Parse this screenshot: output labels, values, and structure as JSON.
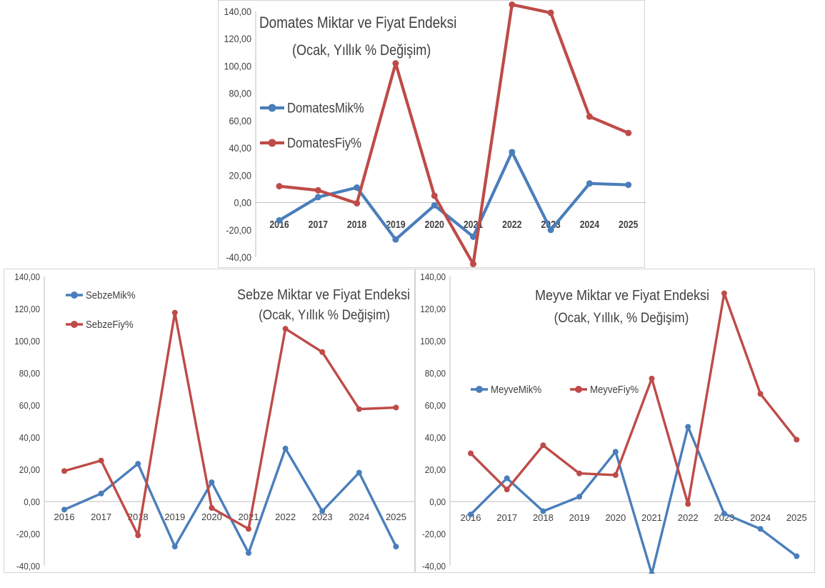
{
  "colors": {
    "mik": "#4a7ebb",
    "fiy": "#be4b48",
    "axis": "#bfbfbf"
  },
  "chart_data": [
    {
      "id": "domates",
      "type": "line",
      "title": "Domates Miktar ve Fiyat Endeksi",
      "subtitle": "(Ocak, Yıllık % Değişim)",
      "categories": [
        "2016",
        "2017",
        "2018",
        "2019",
        "2020",
        "2021",
        "2022",
        "2023",
        "2024",
        "2025"
      ],
      "ylim": [
        -40,
        140
      ],
      "yticks": [
        "-40,00",
        "-20,00",
        "0,00",
        "20,00",
        "40,00",
        "60,00",
        "80,00",
        "100,00",
        "120,00",
        "140,00"
      ],
      "legend_position": "left",
      "series": [
        {
          "name": "DomatesMik%",
          "color": "#4a7ebb",
          "values": [
            -13,
            4,
            11,
            -27,
            -2,
            -25,
            37,
            -20,
            14,
            13
          ]
        },
        {
          "name": "DomatesFiy%",
          "color": "#be4b48",
          "values": [
            12,
            9,
            -0.5,
            102,
            5,
            -45,
            145,
            139,
            63,
            51
          ]
        }
      ]
    },
    {
      "id": "sebze",
      "type": "line",
      "title": "Sebze Miktar ve Fiyat Endeksi",
      "subtitle": "(Ocak, Yıllık % Değişim)",
      "categories": [
        "2016",
        "2017",
        "2018",
        "2019",
        "2020",
        "2021",
        "2022",
        "2023",
        "2024",
        "2025"
      ],
      "ylim": [
        -40,
        140
      ],
      "yticks": [
        "-40,00",
        "-20,00",
        "0,00",
        "20,00",
        "40,00",
        "60,00",
        "80,00",
        "100,00",
        "120,00",
        "140,00"
      ],
      "legend_position": "top-left",
      "series": [
        {
          "name": "SebzeMik%",
          "color": "#4a7ebb",
          "values": [
            -5,
            5,
            23.5,
            -28,
            12,
            -32,
            33,
            -6,
            18,
            -28
          ]
        },
        {
          "name": "SebzeFiy%",
          "color": "#be4b48",
          "values": [
            19,
            25.5,
            -21,
            117.5,
            -4,
            -17,
            107.5,
            93,
            57.5,
            58.5
          ]
        }
      ]
    },
    {
      "id": "meyve",
      "type": "line",
      "title": "Meyve Miktar ve Fiyat Endeksi",
      "subtitle": "(Ocak, Yıllık, % Değişim)",
      "categories": [
        "2016",
        "2017",
        "2018",
        "2019",
        "2020",
        "2021",
        "2022",
        "2023",
        "2024",
        "2025"
      ],
      "ylim": [
        -40,
        140
      ],
      "yticks": [
        "-40,00",
        "-20,00",
        "0,00",
        "20,00",
        "40,00",
        "60,00",
        "80,00",
        "100,00",
        "120,00",
        "140,00"
      ],
      "legend_position": "middle-left",
      "series": [
        {
          "name": "MeyveMik%",
          "color": "#4a7ebb",
          "values": [
            -8,
            14.5,
            -6,
            3,
            31,
            -45,
            46.5,
            -7.5,
            -17,
            -34
          ]
        },
        {
          "name": "MeyveFiy%",
          "color": "#be4b48",
          "values": [
            30,
            7.5,
            35,
            17.5,
            16.5,
            76.5,
            -1.5,
            129.5,
            67,
            38.5
          ]
        }
      ]
    }
  ]
}
